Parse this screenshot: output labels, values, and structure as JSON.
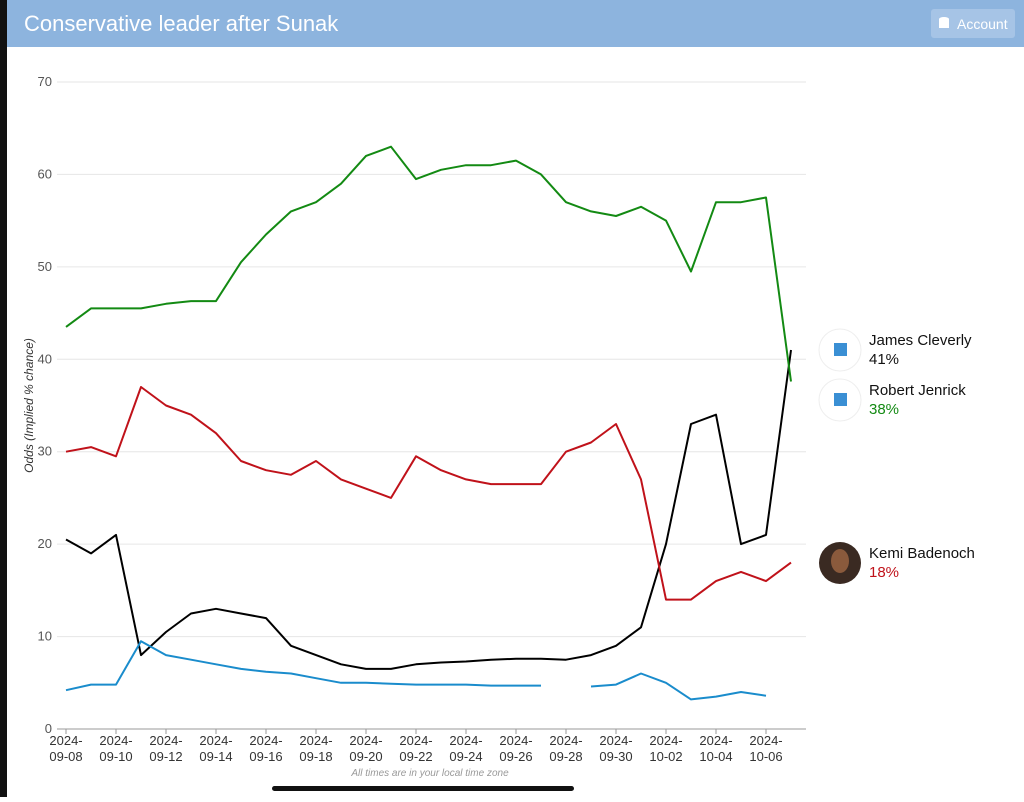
{
  "header": {
    "title": "Conservative leader after Sunak",
    "account": "Account"
  },
  "chart_data": {
    "type": "line",
    "y_label": "Odds (Implied % chance)",
    "footnote": "All times are in your local time zone",
    "x": [
      "2024-09-08",
      "2024-09-09",
      "2024-09-10",
      "2024-09-11",
      "2024-09-12",
      "2024-09-13",
      "2024-09-14",
      "2024-09-15",
      "2024-09-16",
      "2024-09-17",
      "2024-09-18",
      "2024-09-19",
      "2024-09-20",
      "2024-09-21",
      "2024-09-22",
      "2024-09-23",
      "2024-09-24",
      "2024-09-25",
      "2024-09-26",
      "2024-09-27",
      "2024-09-28",
      "2024-09-29",
      "2024-09-30",
      "2024-10-01",
      "2024-10-02",
      "2024-10-03",
      "2024-10-04",
      "2024-10-05",
      "2024-10-06",
      "2024-10-07"
    ],
    "series": [
      {
        "name": "James Cleverly",
        "end_label": "41%",
        "color": "#000000",
        "label_color": "#111111",
        "values": [
          20.5,
          19,
          21,
          8,
          10.5,
          12.5,
          13,
          12.5,
          12,
          9,
          8,
          7,
          6.5,
          6.5,
          7,
          7.2,
          7.3,
          7.5,
          7.6,
          7.6,
          7.5,
          8,
          9,
          11,
          20,
          33,
          34,
          20,
          21,
          41
        ]
      },
      {
        "name": "Robert Jenrick",
        "end_label": "38%",
        "color": "#138a13",
        "label_color": "#138a13",
        "values": [
          43.5,
          45.5,
          45.5,
          45.5,
          46,
          46.3,
          46.3,
          50.5,
          53.5,
          56,
          57,
          59,
          62,
          63,
          59.5,
          60.5,
          61,
          61,
          61.5,
          60,
          57,
          56,
          55.5,
          56.5,
          55,
          49.5,
          57,
          57,
          57.5,
          37.6
        ]
      },
      {
        "name": "Kemi Badenoch",
        "end_label": "18%",
        "color": "#c0121a",
        "label_color": "#c0121a",
        "values": [
          30,
          30.5,
          29.5,
          37,
          35,
          34,
          32,
          29,
          28,
          27.5,
          29,
          27,
          26,
          25,
          29.5,
          28,
          27,
          26.5,
          26.5,
          26.5,
          30,
          31,
          33,
          27,
          14,
          14,
          16,
          17,
          16,
          18
        ]
      },
      {
        "color": "#1a8ccc",
        "values": [
          4.2,
          4.8,
          4.8,
          9.5,
          8,
          7.5,
          7,
          6.5,
          6.2,
          6,
          5.5,
          5,
          5,
          4.9,
          4.8,
          4.8,
          4.8,
          4.7,
          4.7,
          4.7,
          null,
          4.6,
          4.8,
          6,
          5,
          3.2,
          3.5,
          4,
          3.6,
          null
        ]
      }
    ],
    "xlim": [
      "2024-09-08",
      "2024-10-07"
    ],
    "xticks": [
      "2024-09-08",
      "2024-09-10",
      "2024-09-12",
      "2024-09-14",
      "2024-09-16",
      "2024-09-18",
      "2024-09-20",
      "2024-09-22",
      "2024-09-24",
      "2024-09-26",
      "2024-09-28",
      "2024-09-30",
      "2024-10-02",
      "2024-10-04",
      "2024-10-06"
    ],
    "ylim": [
      0,
      70
    ],
    "yticks": [
      0,
      10,
      20,
      30,
      40,
      50,
      60,
      70
    ],
    "grid": true
  }
}
